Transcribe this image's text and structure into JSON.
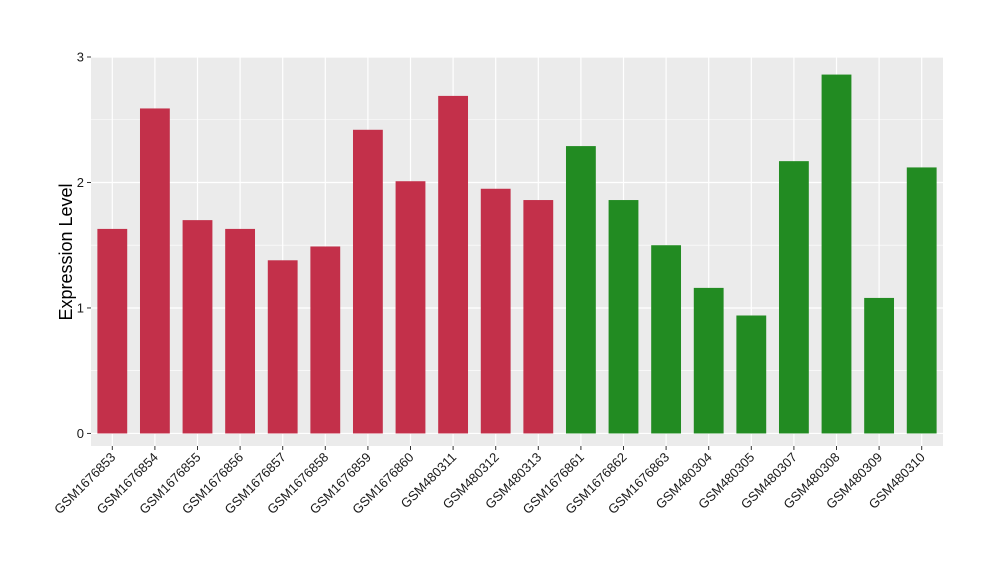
{
  "chart_data": {
    "type": "bar",
    "title": "",
    "xlabel": "",
    "ylabel": "Expression Level",
    "ylim": [
      -0.1,
      3.0
    ],
    "yticks": [
      0,
      1,
      2,
      3
    ],
    "grid": true,
    "categories": [
      "GSM1676853",
      "GSM1676854",
      "GSM1676855",
      "GSM1676856",
      "GSM1676857",
      "GSM1676858",
      "GSM1676859",
      "GSM1676860",
      "GSM480311",
      "GSM480312",
      "GSM480313",
      "GSM1676861",
      "GSM1676862",
      "GSM1676863",
      "GSM480304",
      "GSM480305",
      "GSM480307",
      "GSM480308",
      "GSM480309",
      "GSM480310"
    ],
    "values": [
      1.63,
      2.59,
      1.7,
      1.63,
      1.38,
      1.49,
      2.42,
      2.01,
      2.69,
      1.95,
      1.86,
      2.29,
      1.86,
      1.5,
      1.16,
      0.94,
      2.17,
      2.86,
      1.08,
      2.12
    ],
    "group": [
      0,
      0,
      0,
      0,
      0,
      0,
      0,
      0,
      0,
      0,
      0,
      1,
      1,
      1,
      1,
      1,
      1,
      1,
      1,
      1
    ],
    "colors": [
      "#c3304a",
      "#228b22"
    ],
    "panel_color": "#ebebeb",
    "grid_color": "#ffffff"
  }
}
